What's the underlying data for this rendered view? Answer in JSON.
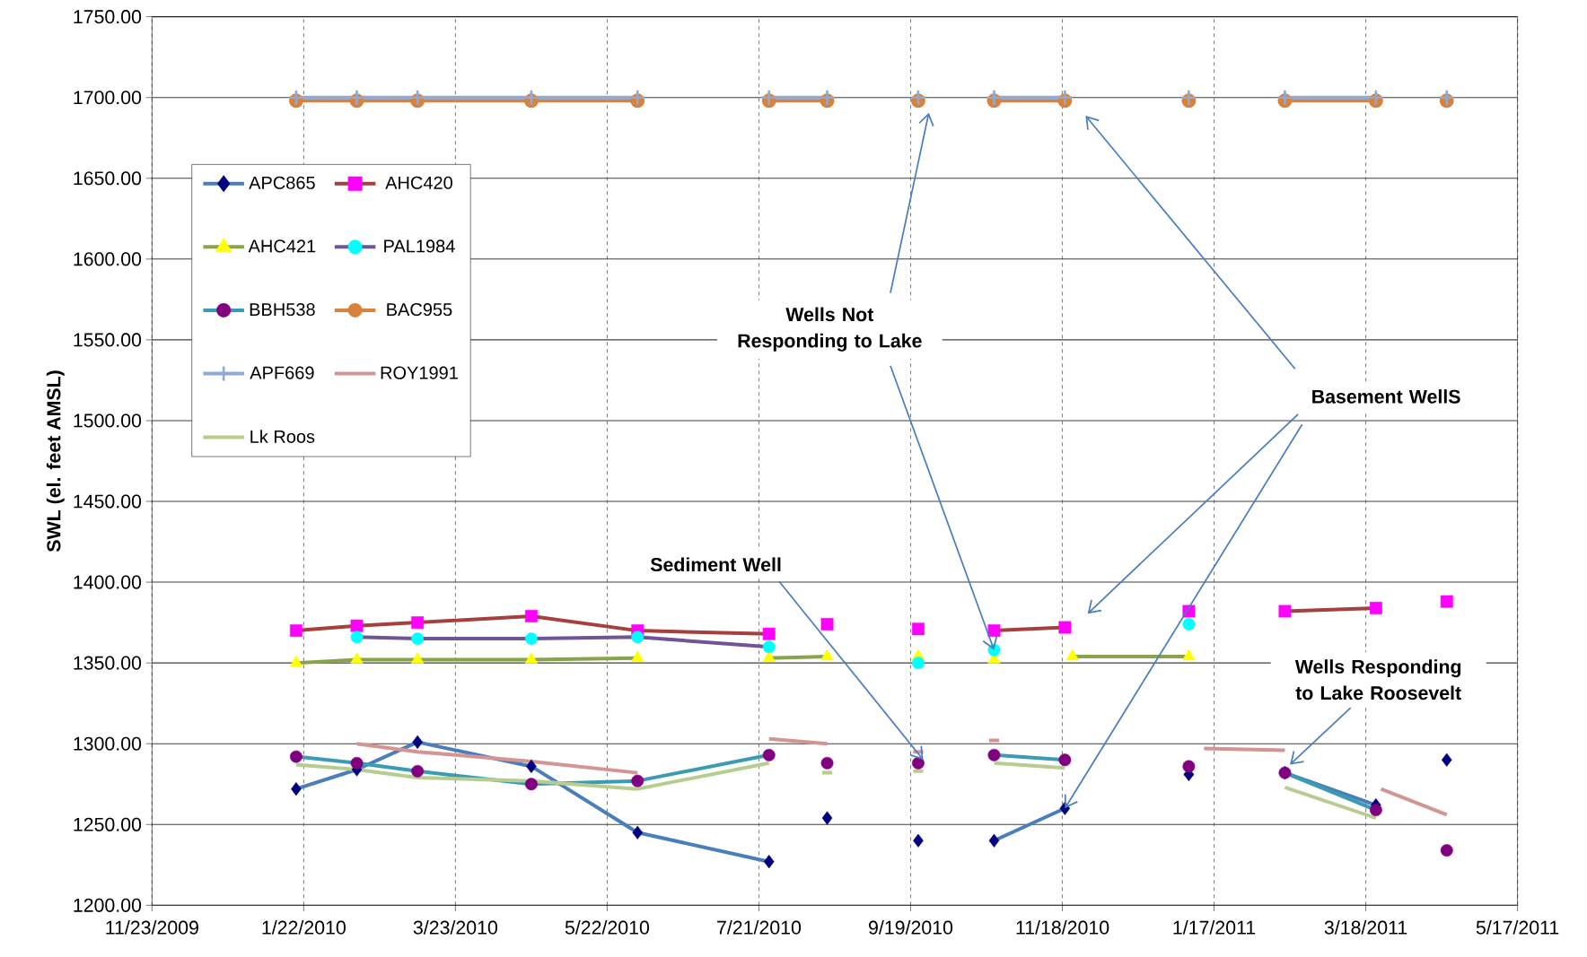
{
  "chart_data": {
    "type": "line",
    "ylabel": "SWL (el. feet AMSL)",
    "xlim": [
      "2009-11-23",
      "2011-05-17"
    ],
    "xticks": [
      {
        "value": "2009-11-23",
        "label": "11/23/2009"
      },
      {
        "value": "2010-01-22",
        "label": "1/22/2010"
      },
      {
        "value": "2010-03-23",
        "label": "3/23/2010"
      },
      {
        "value": "2010-05-22",
        "label": "5/22/2010"
      },
      {
        "value": "2010-07-21",
        "label": "7/21/2010"
      },
      {
        "value": "2010-09-19",
        "label": "9/19/2010"
      },
      {
        "value": "2010-11-18",
        "label": "11/18/2010"
      },
      {
        "value": "2011-01-17",
        "label": "1/17/2011"
      },
      {
        "value": "2011-03-18",
        "label": "3/18/2011"
      },
      {
        "value": "2011-05-17",
        "label": "5/17/2011"
      }
    ],
    "ylim": [
      1200,
      1750
    ],
    "yticks": [
      {
        "value": 1200,
        "label": "1200.00"
      },
      {
        "value": 1250,
        "label": "1250.00"
      },
      {
        "value": 1300,
        "label": "1300.00"
      },
      {
        "value": 1350,
        "label": "1350.00"
      },
      {
        "value": 1400,
        "label": "1400.00"
      },
      {
        "value": 1450,
        "label": "1450.00"
      },
      {
        "value": 1500,
        "label": "1500.00"
      },
      {
        "value": 1550,
        "label": "1550.00"
      },
      {
        "value": 1600,
        "label": "1600.00"
      },
      {
        "value": 1650,
        "label": "1650.00"
      },
      {
        "value": 1700,
        "label": "1700.00"
      },
      {
        "value": 1750,
        "label": "1750.00"
      }
    ],
    "grid": true,
    "legend": "top left",
    "series": [
      {
        "name": "APC865",
        "color": "#4a7ebb",
        "marker": "diamond",
        "x": [
          "2010-01-19",
          "2010-02-12",
          "2010-03-08",
          "2010-04-22",
          "2010-06-03",
          "2010-07-25",
          "2010-08-05",
          "2010-08-17",
          "2010-09-05",
          "2010-09-22",
          "2010-10-07",
          "2010-10-22",
          "2010-11-19",
          "2010-12-15",
          "2011-01-07",
          "2011-01-25",
          "2011-02-14",
          "2011-03-22",
          "2011-04-05",
          "2011-04-19"
        ],
        "values": [
          1272,
          1284,
          1301,
          1286,
          1245,
          1227,
          null,
          1254,
          null,
          1240,
          null,
          1240,
          1260,
          null,
          1281,
          null,
          1282,
          1262,
          null,
          1290
        ],
        "colors": [
          "#000080",
          "#000080",
          "#000080",
          "#000080",
          "#000080",
          "#000080",
          null,
          "#000080",
          null,
          "#000080",
          null,
          "#000080",
          "#000080",
          null,
          "#000080",
          null,
          "#000080",
          "#000080",
          null,
          "#000080"
        ]
      },
      {
        "name": "AHC420",
        "color": "#a5403c",
        "marker": "square",
        "x": [
          "2010-01-19",
          "2010-02-12",
          "2010-03-08",
          "2010-04-22",
          "2010-06-03",
          "2010-07-25",
          "2010-08-05",
          "2010-08-17",
          "2010-09-05",
          "2010-09-22",
          "2010-10-07",
          "2010-10-22",
          "2010-11-19",
          "2010-12-15",
          "2011-01-07",
          "2011-01-25",
          "2011-02-14",
          "2011-03-22",
          "2011-04-05",
          "2011-04-19"
        ],
        "values": [
          1370,
          1373,
          1375,
          1379,
          1370,
          1368,
          null,
          1374,
          null,
          1371,
          null,
          1370,
          1372,
          null,
          1382,
          null,
          1382,
          1384,
          null,
          1388
        ],
        "colors": [
          "#ff00ff",
          "#ff00ff",
          "#ff00ff",
          "#ff00ff",
          "#ff00ff",
          "#ff00ff",
          null,
          "#ff00ff",
          null,
          "#ff00ff",
          null,
          "#ff00ff",
          "#ff00ff",
          null,
          "#ff00ff",
          null,
          "#ff00ff",
          "#ff00ff",
          null,
          "#ff00ff"
        ]
      },
      {
        "name": "AHC421",
        "color": "#86a44a",
        "marker": "triangle",
        "x": [
          "2010-01-19",
          "2010-02-12",
          "2010-03-08",
          "2010-04-22",
          "2010-06-03",
          "2010-07-01",
          "2010-07-25",
          "2010-08-17",
          "2010-09-05",
          "2010-09-22",
          "2010-10-07",
          "2010-10-22",
          "2010-11-07",
          "2010-11-22",
          "2011-01-07"
        ],
        "values": [
          1350,
          1352,
          1352,
          1352,
          1353,
          null,
          1353,
          1354,
          null,
          1354,
          null,
          1352,
          null,
          1354,
          1354
        ],
        "colors": [
          "#ffff00",
          "#ffff00",
          "#ffff00",
          "#ffff00",
          "#ffff00",
          null,
          "#ffff00",
          "#ffff00",
          null,
          "#ffff00",
          null,
          "#ffff00",
          null,
          "#ffff00",
          "#ffff00"
        ]
      },
      {
        "name": "PAL1984",
        "color": "#6f5597",
        "marker": "circle",
        "x": [
          "2010-02-12",
          "2010-03-08",
          "2010-04-22",
          "2010-06-03",
          "2010-07-25",
          "2010-08-05",
          "2010-09-22",
          "2010-10-07",
          "2010-10-22",
          "2010-12-15",
          "2011-01-07"
        ],
        "values": [
          1366,
          1365,
          1365,
          1366,
          1360,
          null,
          1350,
          null,
          1358,
          null,
          1374
        ],
        "colors": [
          "#00ffff",
          "#00ffff",
          "#00ffff",
          "#00ffff",
          "#00ffff",
          null,
          "#00ffff",
          null,
          "#00ffff",
          null,
          "#00ffff"
        ]
      },
      {
        "name": "BBH538",
        "color": "#3c9bb4",
        "marker": "circle",
        "x": [
          "2010-01-19",
          "2010-02-12",
          "2010-03-08",
          "2010-04-22",
          "2010-06-03",
          "2010-07-25",
          "2010-08-05",
          "2010-08-17",
          "2010-09-05",
          "2010-09-22",
          "2010-10-07",
          "2010-10-22",
          "2010-11-19",
          "2010-12-15",
          "2011-01-07",
          "2011-01-25",
          "2011-02-14",
          "2011-03-22",
          "2011-04-05",
          "2011-04-19"
        ],
        "values": [
          1292,
          1288,
          1283,
          1275,
          1277,
          1293,
          null,
          1288,
          null,
          1288,
          null,
          1293,
          1290,
          null,
          1286,
          null,
          1282,
          1259,
          null,
          1234
        ],
        "colors": [
          "#800080",
          "#800080",
          "#800080",
          "#800080",
          "#800080",
          "#800080",
          null,
          "#800080",
          null,
          "#800080",
          null,
          "#800080",
          "#800080",
          null,
          "#800080",
          null,
          "#800080",
          "#800080",
          null,
          "#800080"
        ]
      },
      {
        "name": "BAC955",
        "color": "#d9823b",
        "marker": "circle",
        "x": [
          "2010-01-19",
          "2010-02-12",
          "2010-03-08",
          "2010-04-22",
          "2010-06-03",
          "2010-07-01",
          "2010-07-25",
          "2010-08-17",
          "2010-09-05",
          "2010-09-22",
          "2010-10-07",
          "2010-10-22",
          "2010-11-19",
          "2010-12-15",
          "2011-01-07",
          "2011-01-25",
          "2011-02-14",
          "2011-03-22",
          "2011-04-05",
          "2011-04-19"
        ],
        "values": [
          1698,
          1698,
          1698,
          1698,
          1698,
          null,
          1698,
          1698,
          null,
          1698,
          null,
          1698,
          1698,
          null,
          1698,
          null,
          1698,
          1698,
          null,
          1698
        ]
      },
      {
        "name": "APF669",
        "color": "#8eaad6",
        "marker": "cross",
        "x": [
          "2010-01-19",
          "2010-02-12",
          "2010-03-08",
          "2010-04-22",
          "2010-06-03",
          "2010-07-01",
          "2010-07-25",
          "2010-08-17",
          "2010-09-05",
          "2010-09-22",
          "2010-10-07",
          "2010-10-22",
          "2010-11-19",
          "2010-12-15",
          "2011-01-07",
          "2011-01-25",
          "2011-02-14",
          "2011-03-22",
          "2011-04-05",
          "2011-04-19"
        ],
        "values": [
          1700,
          1700,
          1700,
          1700,
          1700,
          null,
          1700,
          1700,
          null,
          1700,
          null,
          1700,
          1700,
          null,
          1700,
          null,
          1700,
          1700,
          null,
          1700
        ]
      },
      {
        "name": "ROY1991",
        "color": "#d49493",
        "marker": "none",
        "x": [
          "2010-02-12",
          "2010-03-08",
          "2010-04-22",
          "2010-06-03",
          "2010-07-01",
          "2010-07-25",
          "2010-08-17",
          "2010-09-05",
          "2010-09-20",
          "2010-09-24",
          "2010-10-07",
          "2010-10-20",
          "2010-10-24",
          "2010-12-15",
          "2011-01-13",
          "2011-02-14",
          "2011-03-05",
          "2011-03-24",
          "2011-04-19"
        ],
        "values": [
          1300,
          1295,
          1289,
          1282,
          null,
          1303,
          1300,
          null,
          1295,
          1295,
          null,
          1302,
          1302,
          null,
          1297,
          1296,
          null,
          1272,
          1256
        ]
      },
      {
        "name": "Lk Roos",
        "color": "#b6cd8f",
        "marker": "none",
        "x": [
          "2010-01-19",
          "2010-02-12",
          "2010-03-08",
          "2010-04-22",
          "2010-06-03",
          "2010-07-25",
          "2010-08-05",
          "2010-08-15",
          "2010-08-19",
          "2010-09-05",
          "2010-09-20",
          "2010-09-24",
          "2010-10-07",
          "2010-10-22",
          "2010-11-19",
          "2010-12-15",
          "2011-01-05",
          "2011-01-09",
          "2011-01-25",
          "2011-02-14",
          "2011-03-22"
        ],
        "values": [
          1287,
          1284,
          1279,
          1277,
          1272,
          1288,
          null,
          1282,
          1282,
          null,
          1283,
          1283,
          null,
          1288,
          1285,
          null,
          1281,
          1281,
          null,
          1273,
          1254
        ]
      }
    ],
    "annotations": [
      {
        "text": "Wells Not Responding to Lake",
        "x": "2010-10-22",
        "y": 1358
      },
      {
        "text": "Basement WellS",
        "x": "2010-11-19",
        "y": 1260
      },
      {
        "text": "Sediment Well",
        "x": "2010-09-24",
        "y": 1290
      },
      {
        "text": "Wells Responding to Lake Roosevelt",
        "x": "2011-02-16",
        "y": 1287
      }
    ]
  }
}
